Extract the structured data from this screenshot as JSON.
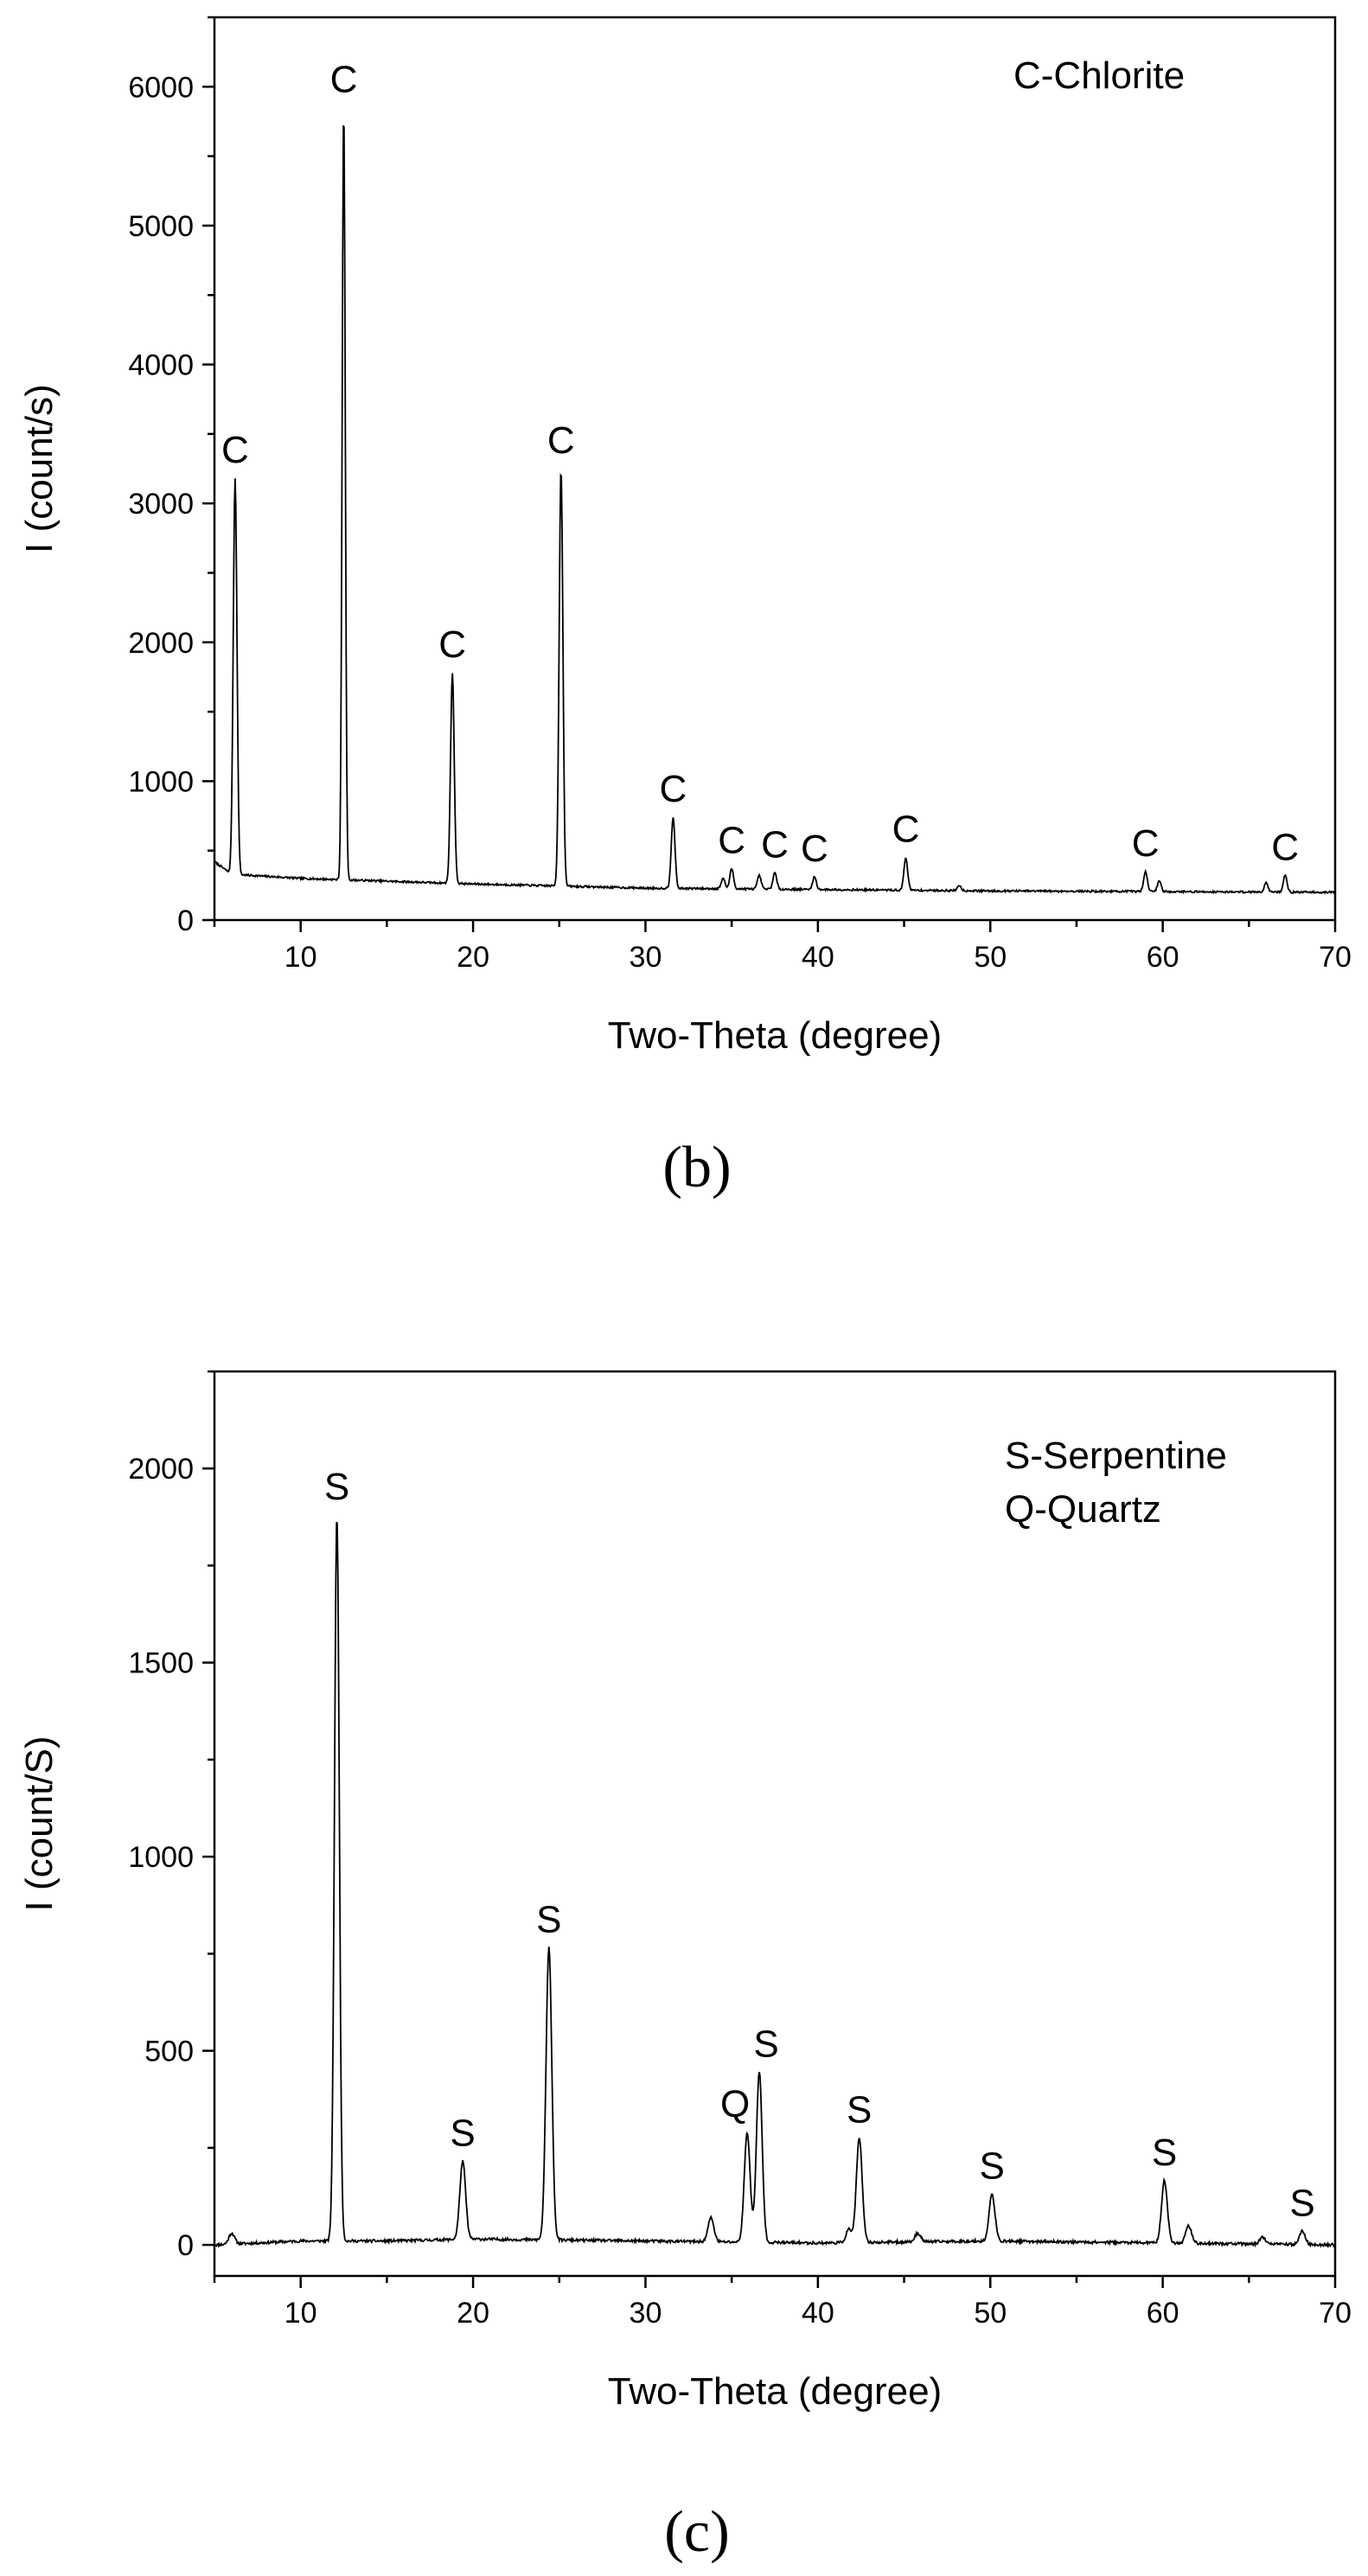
{
  "chart_data": [
    {
      "type": "line",
      "panel_label": "(b)",
      "xlabel": "Two-Theta (degree)",
      "ylabel": "I (count/s)",
      "xlim": [
        5,
        70
      ],
      "ylim": [
        0,
        6500
      ],
      "xticks": [
        10,
        20,
        30,
        40,
        50,
        60,
        70
      ],
      "yticks": [
        0,
        1000,
        2000,
        3000,
        4000,
        5000,
        6000
      ],
      "legend": [
        "C-Chlorite"
      ],
      "legend_position": "top-right",
      "grid": false,
      "series": [
        {
          "baseline": [
            [
              5,
              420
            ],
            [
              6,
              330
            ],
            [
              10,
              300
            ],
            [
              20,
              260
            ],
            [
              30,
              230
            ],
            [
              40,
              220
            ],
            [
              50,
              210
            ],
            [
              60,
              205
            ],
            [
              70,
              200
            ]
          ],
          "peaks": [
            {
              "x": 6.2,
              "y": 3180,
              "label": "C"
            },
            {
              "x": 12.5,
              "y": 5850,
              "label": "C"
            },
            {
              "x": 18.8,
              "y": 1780,
              "label": "C"
            },
            {
              "x": 25.1,
              "y": 3250,
              "label": "C"
            },
            {
              "x": 31.6,
              "y": 740,
              "label": "C"
            },
            {
              "x": 35.0,
              "y": 370,
              "label": "C"
            },
            {
              "x": 37.5,
              "y": 340,
              "label": "C"
            },
            {
              "x": 39.8,
              "y": 310,
              "label": "C"
            },
            {
              "x": 45.1,
              "y": 450,
              "label": "C"
            },
            {
              "x": 59.0,
              "y": 350,
              "label": "C"
            },
            {
              "x": 67.1,
              "y": 320,
              "label": "C"
            }
          ],
          "minor_peaks": [
            {
              "x": 34.5,
              "y": 300
            },
            {
              "x": 36.6,
              "y": 320
            },
            {
              "x": 48.2,
              "y": 250
            },
            {
              "x": 59.8,
              "y": 280
            },
            {
              "x": 66.0,
              "y": 270
            }
          ]
        }
      ]
    },
    {
      "type": "line",
      "panel_label": "(c)",
      "xlabel": "Two-Theta (degree)",
      "ylabel": "I (count/S)",
      "xlim": [
        5,
        70
      ],
      "ylim": [
        -80,
        2250
      ],
      "xticks": [
        10,
        20,
        30,
        40,
        50,
        60,
        70
      ],
      "yticks": [
        0,
        500,
        1000,
        1500,
        2000
      ],
      "legend": [
        "S-Serpentine",
        "Q-Quartz"
      ],
      "legend_position": "top-right",
      "grid": false,
      "series": [
        {
          "baseline": [
            [
              5,
              0
            ],
            [
              10,
              10
            ],
            [
              15,
              10
            ],
            [
              20,
              15
            ],
            [
              30,
              10
            ],
            [
              40,
              5
            ],
            [
              50,
              10
            ],
            [
              60,
              5
            ],
            [
              70,
              0
            ]
          ],
          "peaks": [
            {
              "x": 12.1,
              "y": 1880,
              "label": "S"
            },
            {
              "x": 19.4,
              "y": 215,
              "label": "S"
            },
            {
              "x": 24.4,
              "y": 765,
              "label": "S"
            },
            {
              "x": 35.9,
              "y": 290,
              "label": "Q"
            },
            {
              "x": 36.6,
              "y": 445,
              "label": "S"
            },
            {
              "x": 42.4,
              "y": 275,
              "label": "S"
            },
            {
              "x": 50.1,
              "y": 130,
              "label": "S"
            },
            {
              "x": 60.1,
              "y": 165,
              "label": "S"
            },
            {
              "x": 68.1,
              "y": 35,
              "label": "S"
            }
          ],
          "minor_peaks": [
            {
              "x": 6.0,
              "y": 30
            },
            {
              "x": 33.8,
              "y": 70
            },
            {
              "x": 41.8,
              "y": 40
            },
            {
              "x": 45.8,
              "y": 30
            },
            {
              "x": 61.5,
              "y": 50
            },
            {
              "x": 65.8,
              "y": 20
            }
          ]
        }
      ]
    }
  ]
}
